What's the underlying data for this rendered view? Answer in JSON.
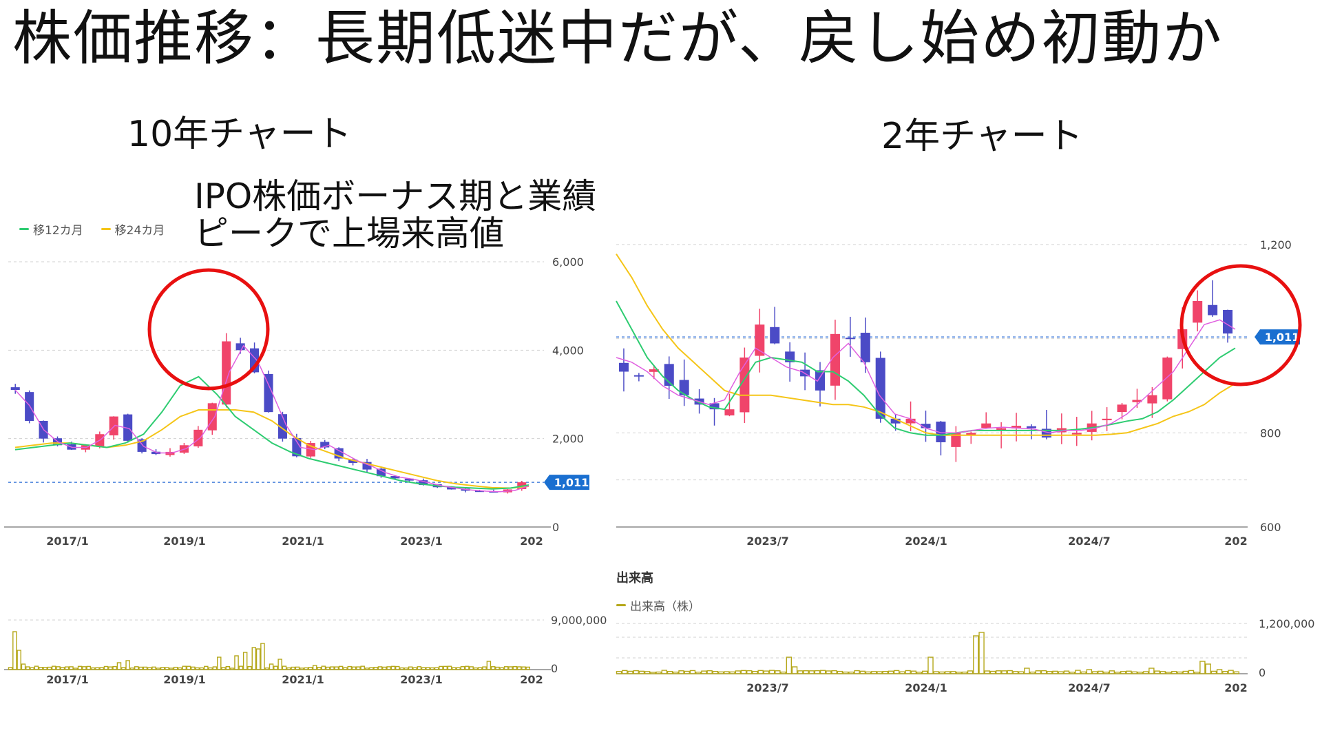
{
  "title": "株価推移：長期低迷中だが、戻し始め初動か",
  "left_heading": "10年チャート",
  "right_heading": "2年チャート",
  "annotation": {
    "line1": "IPO株価ボーナス期と業績",
    "line2": "ピークで上場来高値"
  },
  "legend": {
    "ma12": "移12カ月",
    "ma24": "移24カ月",
    "volume_title": "出来高",
    "volume_series": "出来高（株）"
  },
  "colors": {
    "up": "#f0446a",
    "down": "#4b4bc6",
    "ma_short": "#e060e0",
    "ma12": "#2ecc71",
    "ma24": "#f5c518",
    "volume": "#b5a719",
    "circle": "#e81010",
    "current": "#1a6fd0"
  },
  "chart_data": [
    {
      "type": "candlestick",
      "title": "10年チャート",
      "x_ticks": [
        "2017/1",
        "2019/1",
        "2021/1",
        "2023/1",
        "202"
      ],
      "y_ticks": [
        "6,000",
        "4,000",
        "2,000",
        "0"
      ],
      "ylim": [
        0,
        6000
      ],
      "current_price": 1011,
      "current_label": "1,011",
      "grid": true,
      "highlight": "circle around 2019 peak",
      "series": [
        {
          "name": "移12カ月",
          "values_approx": [
            1750,
            1800,
            1850,
            1900,
            1850,
            1800,
            1900,
            2100,
            2600,
            3200,
            3400,
            3000,
            2500,
            2200,
            1900,
            1700,
            1550,
            1450,
            1350,
            1250,
            1150,
            1050,
            980,
            930,
            900,
            880,
            860,
            880,
            950
          ]
        },
        {
          "name": "移24カ月",
          "values_approx": [
            1800,
            1850,
            1900,
            1900,
            1850,
            1800,
            1850,
            1950,
            2200,
            2500,
            2650,
            2650,
            2650,
            2600,
            2400,
            2100,
            1850,
            1700,
            1550,
            1450,
            1350,
            1250,
            1150,
            1050,
            980,
            930,
            890,
            880,
            920
          ]
        }
      ],
      "price_path_approx": [
        3100,
        2400,
        2000,
        1850,
        1750,
        1850,
        2100,
        2500,
        1950,
        1700,
        1650,
        1700,
        1850,
        2200,
        2800,
        4200,
        4000,
        3500,
        2600,
        2000,
        1600,
        1900,
        1800,
        1550,
        1450,
        1300,
        1150,
        1100,
        1050,
        950,
        900,
        850,
        820,
        800,
        800,
        850,
        1011
      ]
    },
    {
      "type": "bar",
      "title": "",
      "x_ticks": [
        "2017/1",
        "2019/1",
        "2021/1",
        "2023/1",
        "202"
      ],
      "y_ticks": [
        "9,000,000",
        "0"
      ],
      "series": [
        {
          "name": "出来高（株）"
        }
      ]
    },
    {
      "type": "candlestick",
      "title": "2年チャート",
      "x_ticks": [
        "2023/7",
        "2024/1",
        "2024/7",
        "202"
      ],
      "y_ticks": [
        "1,200",
        "800",
        "600"
      ],
      "ylim": [
        600,
        1200
      ],
      "current_price": 1011,
      "current_label": "1,011",
      "grid": true,
      "highlight": "circle around latest spike",
      "price_path_approx": [
        930,
        920,
        935,
        900,
        880,
        860,
        850,
        850,
        960,
        1030,
        990,
        950,
        920,
        890,
        1010,
        1000,
        950,
        830,
        820,
        830,
        810,
        780,
        800,
        800,
        820,
        810,
        815,
        810,
        790,
        810,
        800,
        820,
        830,
        860,
        870,
        880,
        960,
        1020,
        1080,
        1050,
        1011
      ],
      "ma_short_approx": [
        960,
        950,
        930,
        900,
        880,
        870,
        860,
        870,
        930,
        980,
        960,
        940,
        930,
        910,
        960,
        990,
        950,
        880,
        840,
        830,
        810,
        800,
        800,
        805,
        810,
        812,
        810,
        808,
        800,
        805,
        805,
        810,
        820,
        840,
        870,
        900,
        930,
        980,
        1030,
        1040,
        1020
      ],
      "ma12_approx": [
        1080,
        1020,
        960,
        920,
        890,
        870,
        855,
        850,
        900,
        950,
        960,
        955,
        950,
        930,
        930,
        910,
        880,
        840,
        810,
        800,
        795,
        795,
        800,
        805,
        805,
        805,
        805,
        805,
        805,
        805,
        808,
        812,
        818,
        825,
        830,
        845,
        870,
        900,
        930,
        960,
        980
      ],
      "ma24_approx": [
        1180,
        1130,
        1070,
        1020,
        980,
        950,
        920,
        890,
        880,
        880,
        880,
        875,
        870,
        865,
        860,
        860,
        855,
        845,
        830,
        815,
        800,
        795,
        795,
        795,
        795,
        795,
        795,
        795,
        795,
        795,
        795,
        795,
        797,
        800,
        810,
        820,
        835,
        845,
        860,
        885,
        905
      ]
    },
    {
      "type": "bar",
      "title": "出来高",
      "x_ticks": [
        "2023/7",
        "2024/1",
        "2024/7",
        "202"
      ],
      "y_ticks": [
        "1,200,000",
        "0"
      ],
      "series": [
        {
          "name": "出来高（株）"
        }
      ]
    }
  ]
}
